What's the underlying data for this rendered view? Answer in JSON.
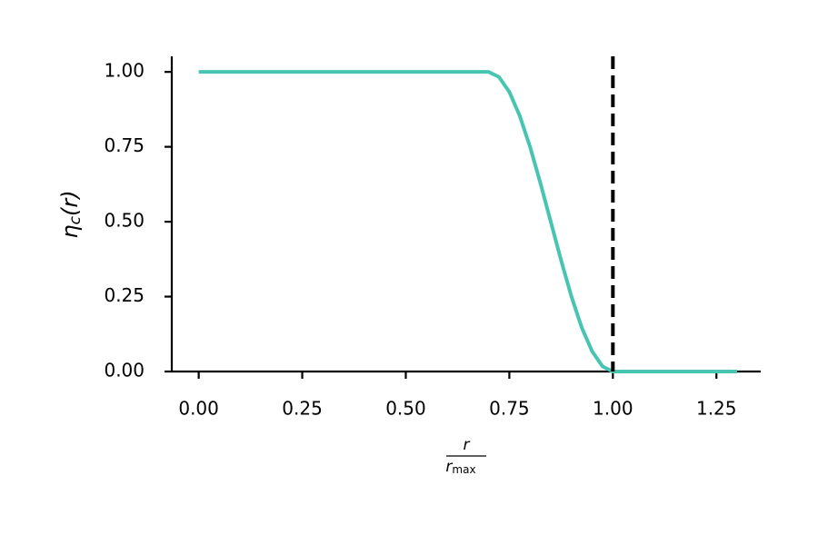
{
  "chart_data": {
    "type": "line",
    "ylabel": {
      "symbol": "η",
      "subscript": "c",
      "argument": "(r)"
    },
    "xlabel": {
      "numerator": "r",
      "denominator": "r",
      "denominator_subscript": "max"
    },
    "x": [
      0,
      0.7,
      0.725,
      0.75,
      0.775,
      0.8,
      0.825,
      0.85,
      0.875,
      0.9,
      0.925,
      0.95,
      0.975,
      1.0,
      1.3
    ],
    "series": [
      {
        "color": "#48c5b0",
        "values": [
          1,
          1,
          0.983,
          0.933,
          0.854,
          0.75,
          0.629,
          0.5,
          0.371,
          0.25,
          0.146,
          0.067,
          0.017,
          0,
          0
        ]
      }
    ],
    "vline": {
      "x": 1.0,
      "color": "#000000",
      "style": "dashed"
    },
    "xlim": [
      -0.065,
      1.357
    ],
    "ylim": [
      0,
      1.052
    ],
    "xticks": [
      {
        "value": 0,
        "label": "0.00"
      },
      {
        "value": 0.25,
        "label": "0.25"
      },
      {
        "value": 0.5,
        "label": "0.50"
      },
      {
        "value": 0.75,
        "label": "0.75"
      },
      {
        "value": 1,
        "label": "1.00"
      },
      {
        "value": 1.25,
        "label": "1.25"
      }
    ],
    "yticks": [
      {
        "value": 0,
        "label": "0.00"
      },
      {
        "value": 0.25,
        "label": "0.25"
      },
      {
        "value": 0.5,
        "label": "0.50"
      },
      {
        "value": 0.75,
        "label": "0.75"
      },
      {
        "value": 1,
        "label": "1.00"
      }
    ],
    "grid": false
  }
}
